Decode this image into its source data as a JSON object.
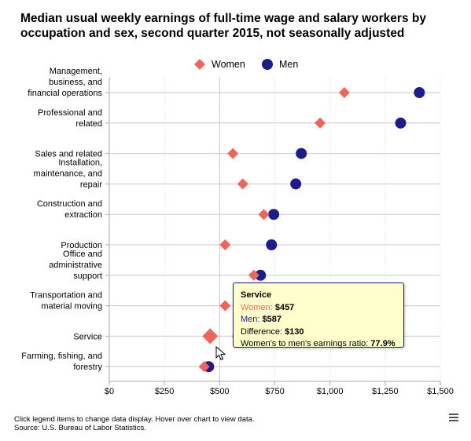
{
  "chart_data": {
    "type": "scatter",
    "title": "Median usual weekly earnings of full-time wage and salary workers by occupation and sex, second quarter 2015, not seasonally adjusted",
    "categories": [
      [
        "Management,",
        "business, and",
        "financial operations"
      ],
      [
        "Professional and",
        "related"
      ],
      [
        "Sales and related"
      ],
      [
        "Installation,",
        "maintenance, and",
        "repair"
      ],
      [
        "Construction and",
        "extraction"
      ],
      [
        "Production"
      ],
      [
        "Office and",
        "administrative",
        "support"
      ],
      [
        "Transportation and",
        "material moving"
      ],
      [
        "Service"
      ],
      [
        "Farming, fishing, and",
        "forestry"
      ]
    ],
    "series": [
      {
        "name": "Women",
        "marker": "diamond",
        "color": "#f0645a",
        "values": [
          1065,
          955,
          560,
          605,
          700,
          525,
          655,
          525,
          457,
          430
        ]
      },
      {
        "name": "Men",
        "marker": "circle",
        "color": "#1c1c8c",
        "values": [
          1405,
          1320,
          870,
          845,
          745,
          735,
          685,
          650,
          587,
          450
        ]
      }
    ],
    "x_ticks": [
      "$0",
      "$250",
      "$500",
      "$750",
      "$1,000",
      "$1,250",
      "$1,500"
    ],
    "x_tick_values": [
      0,
      250,
      500,
      750,
      1000,
      1250,
      1500
    ],
    "xlim": [
      0,
      1500
    ],
    "grid": "vertical dotted",
    "legend_position": "top-center",
    "highlighted_category_index": 8
  },
  "tooltip": {
    "title": "Service",
    "women_label": "Women",
    "women_value": "$457",
    "men_label": "Men",
    "men_value": "$587",
    "difference_label": "Difference",
    "difference_value": "$130",
    "ratio_label": "Women's to men's earnings ratio",
    "ratio_value": "77.9%"
  },
  "footer": {
    "line1": "Click legend items to change data display. Hover over chart to view data.",
    "line2": "Source: U.S. Bureau of Labor Statistics."
  },
  "icons": {
    "menu": "hamburger-menu-icon",
    "cursor": "mouse-cursor-icon"
  }
}
